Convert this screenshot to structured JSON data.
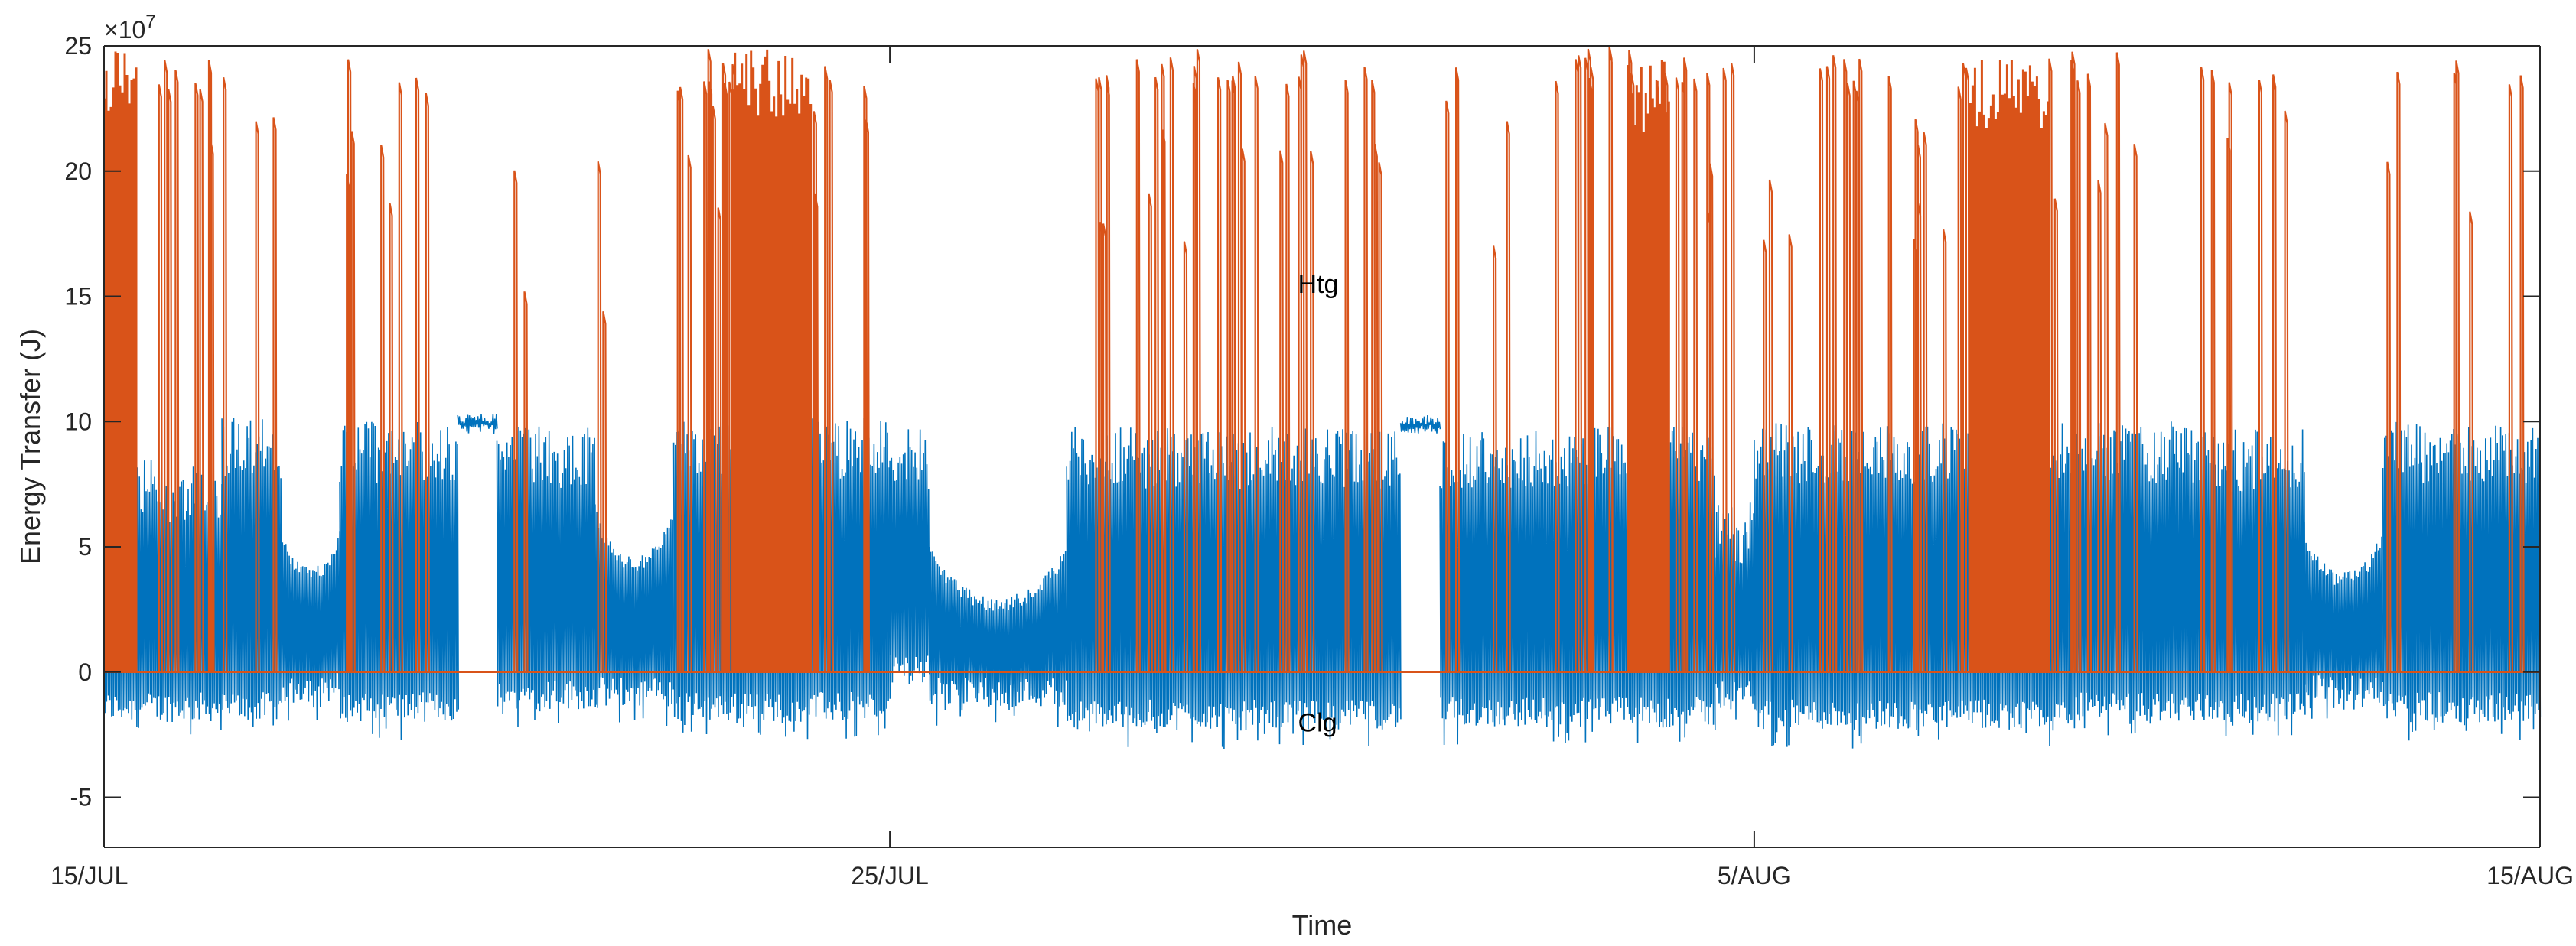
{
  "chart_data": {
    "type": "line",
    "xlabel": "Time",
    "ylabel": "Energy Transfer (J)",
    "y_exponent_label": "×10",
    "y_exponent_power": "7",
    "y_multiplier": 10000000,
    "ylim": [
      -7,
      25
    ],
    "yticks": [
      -5,
      0,
      5,
      10,
      15,
      20,
      25
    ],
    "xlim": [
      "2023-07-15",
      "2023-08-15"
    ],
    "xticks": [
      {
        "date": "2023-07-15",
        "label": "15/JUL"
      },
      {
        "date": "2023-07-25",
        "label": "25/JUL"
      },
      {
        "date": "2023-08-05",
        "label": "5/AUG"
      },
      {
        "date": "2023-08-15",
        "label": "15/AUG"
      }
    ],
    "grid": false,
    "annotations": [
      {
        "text": "Htg",
        "x": "2023-07-30T14:00",
        "y": 15.5
      },
      {
        "text": "Clg",
        "x": "2023-07-30T14:00",
        "y": -2
      }
    ],
    "colors": {
      "htg": "#D95319",
      "clg": "#0072BD",
      "axis": "#262626"
    },
    "series": [
      {
        "key": "clg",
        "color": "#0072BD",
        "segments": [
          {
            "start": "2023-07-15T00:00",
            "end": "2023-07-16T12:00",
            "hi": 8.5,
            "lo": -2.0,
            "mode": "osc"
          },
          {
            "start": "2023-07-16T12:00",
            "end": "2023-07-17T06:00",
            "hi": 10.2,
            "lo": -2.0,
            "mode": "osc"
          },
          {
            "start": "2023-07-17T06:00",
            "end": "2023-07-18T00:00",
            "hi": 6.0,
            "lo": -1.2,
            "mode": "dip",
            "dip": 4.2
          },
          {
            "start": "2023-07-18T00:00",
            "end": "2023-07-19T12:00",
            "hi": 10.0,
            "lo": -2.0,
            "mode": "osc"
          },
          {
            "start": "2023-07-19T12:00",
            "end": "2023-07-20T00:00",
            "hi": 10.3,
            "lo": 9.5,
            "mode": "flat"
          },
          {
            "start": "2023-07-20T00:00",
            "end": "2023-07-21T06:00",
            "hi": 9.8,
            "lo": -1.5,
            "mode": "osc"
          },
          {
            "start": "2023-07-21T06:00",
            "end": "2023-07-22T06:00",
            "hi": 7.0,
            "lo": -1.4,
            "mode": "dip",
            "dip": 4.6
          },
          {
            "start": "2023-07-22T06:00",
            "end": "2023-07-25T00:00",
            "hi": 10.2,
            "lo": -2.0,
            "mode": "osc"
          },
          {
            "start": "2023-07-25T00:00",
            "end": "2023-07-25T12:00",
            "hi": 9.7,
            "lo": -0.5,
            "mode": "osc"
          },
          {
            "start": "2023-07-25T12:00",
            "end": "2023-07-27T06:00",
            "hi": 5.4,
            "lo": -1.4,
            "mode": "dip",
            "dip": 3.0
          },
          {
            "start": "2023-07-27T06:00",
            "end": "2023-07-31T12:00",
            "hi": 9.8,
            "lo": -2.3,
            "mode": "osc"
          },
          {
            "start": "2023-07-31T12:00",
            "end": "2023-08-01T00:00",
            "hi": 10.3,
            "lo": 9.5,
            "mode": "flat"
          },
          {
            "start": "2023-08-01T00:00",
            "end": "2023-08-04T12:00",
            "hi": 9.8,
            "lo": -2.2,
            "mode": "osc"
          },
          {
            "start": "2023-08-04T12:00",
            "end": "2023-08-05T00:00",
            "hi": 6.8,
            "lo": -1.5,
            "mode": "osc"
          },
          {
            "start": "2023-08-05T00:00",
            "end": "2023-08-09T00:00",
            "hi": 10.0,
            "lo": -2.3,
            "mode": "osc"
          },
          {
            "start": "2023-08-09T00:00",
            "end": "2023-08-10T12:00",
            "hi": 10.0,
            "lo": -2.0,
            "mode": "osc"
          },
          {
            "start": "2023-08-10T12:00",
            "end": "2023-08-12T00:00",
            "hi": 9.7,
            "lo": -2.0,
            "mode": "osc"
          },
          {
            "start": "2023-08-12T00:00",
            "end": "2023-08-13T00:00",
            "hi": 6.0,
            "lo": -1.3,
            "mode": "dip",
            "dip": 4.0
          },
          {
            "start": "2023-08-13T00:00",
            "end": "2023-08-15T00:00",
            "hi": 10.0,
            "lo": -2.0,
            "mode": "osc"
          }
        ]
      },
      {
        "key": "htg",
        "color": "#D95319",
        "baseline": 0,
        "spikes": [
          {
            "start": "2023-07-15T00:00",
            "end": "2023-07-15T10:00",
            "density": 1.0,
            "max": 25
          },
          {
            "start": "2023-07-15T10:00",
            "end": "2023-07-16T16:00",
            "density": 0.25,
            "max": 24.7
          },
          {
            "start": "2023-07-16T16:00",
            "end": "2023-07-17T04:00",
            "density": 0.12,
            "max": 23
          },
          {
            "start": "2023-07-17T20:00",
            "end": "2023-07-18T16:00",
            "density": 0.22,
            "max": 24.5
          },
          {
            "start": "2023-07-18T16:00",
            "end": "2023-07-19T08:00",
            "density": 0.15,
            "max": 24.5
          },
          {
            "start": "2023-07-20T00:00",
            "end": "2023-07-20T20:00",
            "density": 0.1,
            "max": 22
          },
          {
            "start": "2023-07-21T00:00",
            "end": "2023-07-21T10:00",
            "density": 0.1,
            "max": 21
          },
          {
            "start": "2023-07-22T06:00",
            "end": "2023-07-23T00:00",
            "density": 0.55,
            "max": 25
          },
          {
            "start": "2023-07-23T00:00",
            "end": "2023-07-24T00:00",
            "density": 1.0,
            "max": 25
          },
          {
            "start": "2023-07-24T00:00",
            "end": "2023-07-25T00:00",
            "density": 0.2,
            "max": 24.7
          },
          {
            "start": "2023-07-27T12:00",
            "end": "2023-07-30T12:00",
            "density": 0.35,
            "max": 24.9
          },
          {
            "start": "2023-07-30T12:00",
            "end": "2023-07-31T10:00",
            "density": 0.18,
            "max": 24.7
          },
          {
            "start": "2023-08-01T00:00",
            "end": "2023-08-01T14:00",
            "density": 0.15,
            "max": 24.3
          },
          {
            "start": "2023-08-01T14:00",
            "end": "2023-08-02T00:00",
            "density": 0.1,
            "max": 22
          },
          {
            "start": "2023-08-02T06:00",
            "end": "2023-08-04T12:00",
            "density": 0.35,
            "max": 25
          },
          {
            "start": "2023-08-03T10:00",
            "end": "2023-08-03T22:00",
            "density": 1.0,
            "max": 24.5
          },
          {
            "start": "2023-08-04T12:00",
            "end": "2023-08-06T06:00",
            "density": 0.2,
            "max": 24.9
          },
          {
            "start": "2023-08-06T06:00",
            "end": "2023-08-07T18:00",
            "density": 0.3,
            "max": 24.7
          },
          {
            "start": "2023-08-07T18:00",
            "end": "2023-08-08T18:00",
            "density": 1.0,
            "max": 24.6
          },
          {
            "start": "2023-08-08T18:00",
            "end": "2023-08-09T12:00",
            "density": 0.4,
            "max": 24.9
          },
          {
            "start": "2023-08-09T12:00",
            "end": "2023-08-10T00:00",
            "density": 0.15,
            "max": 24.8
          },
          {
            "start": "2023-08-10T16:00",
            "end": "2023-08-12T00:00",
            "density": 0.22,
            "max": 24.5
          },
          {
            "start": "2023-08-13T00:00",
            "end": "2023-08-14T12:00",
            "density": 0.12,
            "max": 24.7
          },
          {
            "start": "2023-08-14T12:00",
            "end": "2023-08-15T00:00",
            "density": 0.15,
            "max": 24.9
          }
        ]
      }
    ]
  }
}
